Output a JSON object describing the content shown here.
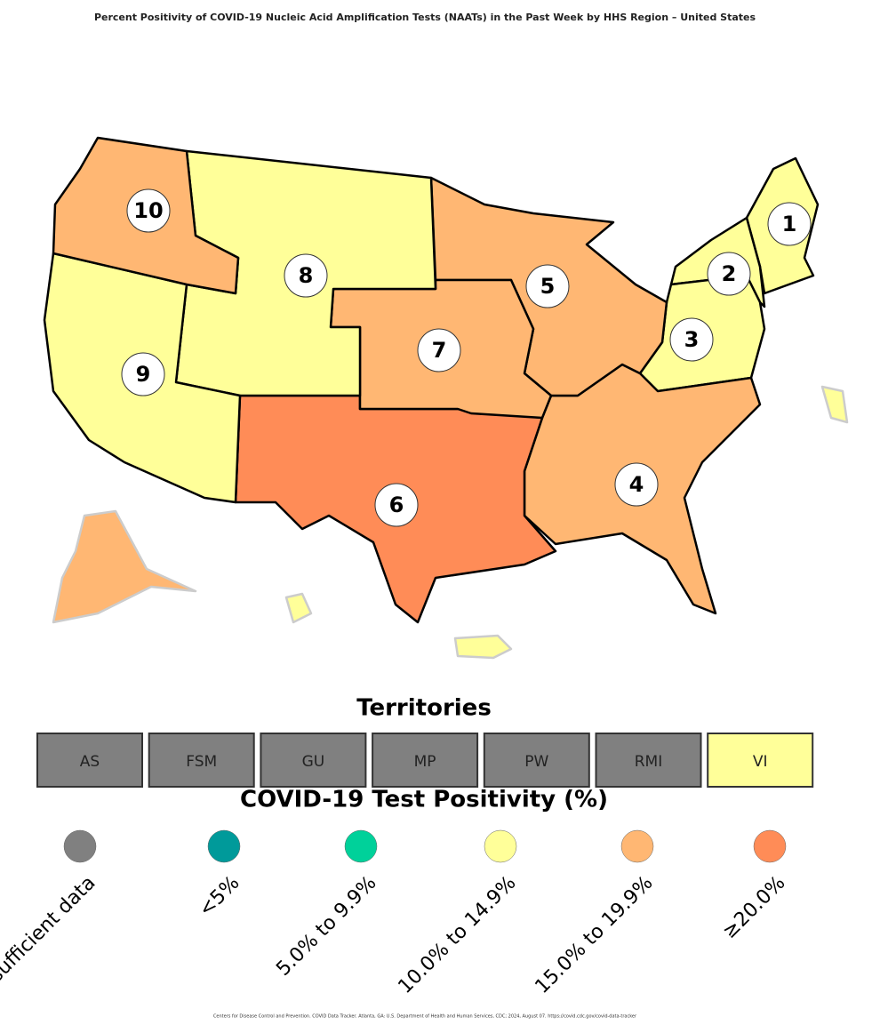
{
  "title": "Percent Positivity of COVID-19 Nucleic Acid Amplification Tests (NAATs) in the Past Week by HHS Region – United States",
  "regions": [
    {
      "label": "1",
      "color": "#ffff99"
    },
    {
      "label": "2",
      "color": "#ffff99"
    },
    {
      "label": "3",
      "color": "#ffff99"
    },
    {
      "label": "4",
      "color": "#ffb773"
    },
    {
      "label": "5",
      "color": "#ffb773"
    },
    {
      "label": "6",
      "color": "#ff8c57"
    },
    {
      "label": "7",
      "color": "#ffb773"
    },
    {
      "label": "8",
      "color": "#ffff99"
    },
    {
      "label": "9",
      "color": "#ffff99"
    },
    {
      "label": "10",
      "color": "#ffb773"
    }
  ],
  "territories_title": "Territories",
  "territories": [
    {
      "label": "AS",
      "color": "#808080"
    },
    {
      "label": "FSM",
      "color": "#808080"
    },
    {
      "label": "GU",
      "color": "#808080"
    },
    {
      "label": "MP",
      "color": "#808080"
    },
    {
      "label": "PW",
      "color": "#808080"
    },
    {
      "label": "RMI",
      "color": "#808080"
    },
    {
      "label": "VI",
      "color": "#ffff99"
    }
  ],
  "legend_title": "COVID-19 Test Positivity (%)",
  "legend": [
    {
      "label": "Insufficient data",
      "color": "#808080"
    },
    {
      "label": "<5%",
      "color": "#009a9a"
    },
    {
      "label": "5.0% to 9.9%",
      "color": "#00d19a"
    },
    {
      "label": "10.0% to 14.9%",
      "color": "#ffff99"
    },
    {
      "label": "15.0% to 19.9%",
      "color": "#ffb773"
    },
    {
      "label": "≥20.0%",
      "color": "#ff8c57"
    }
  ],
  "footnote": "Centers for Disease Control and Prevention. COVID Data Tracker. Atlanta, GA: U.S. Department of Health and Human Services, CDC; 2024, August 07. https://covid.cdc.gov/covid-data-tracker"
}
